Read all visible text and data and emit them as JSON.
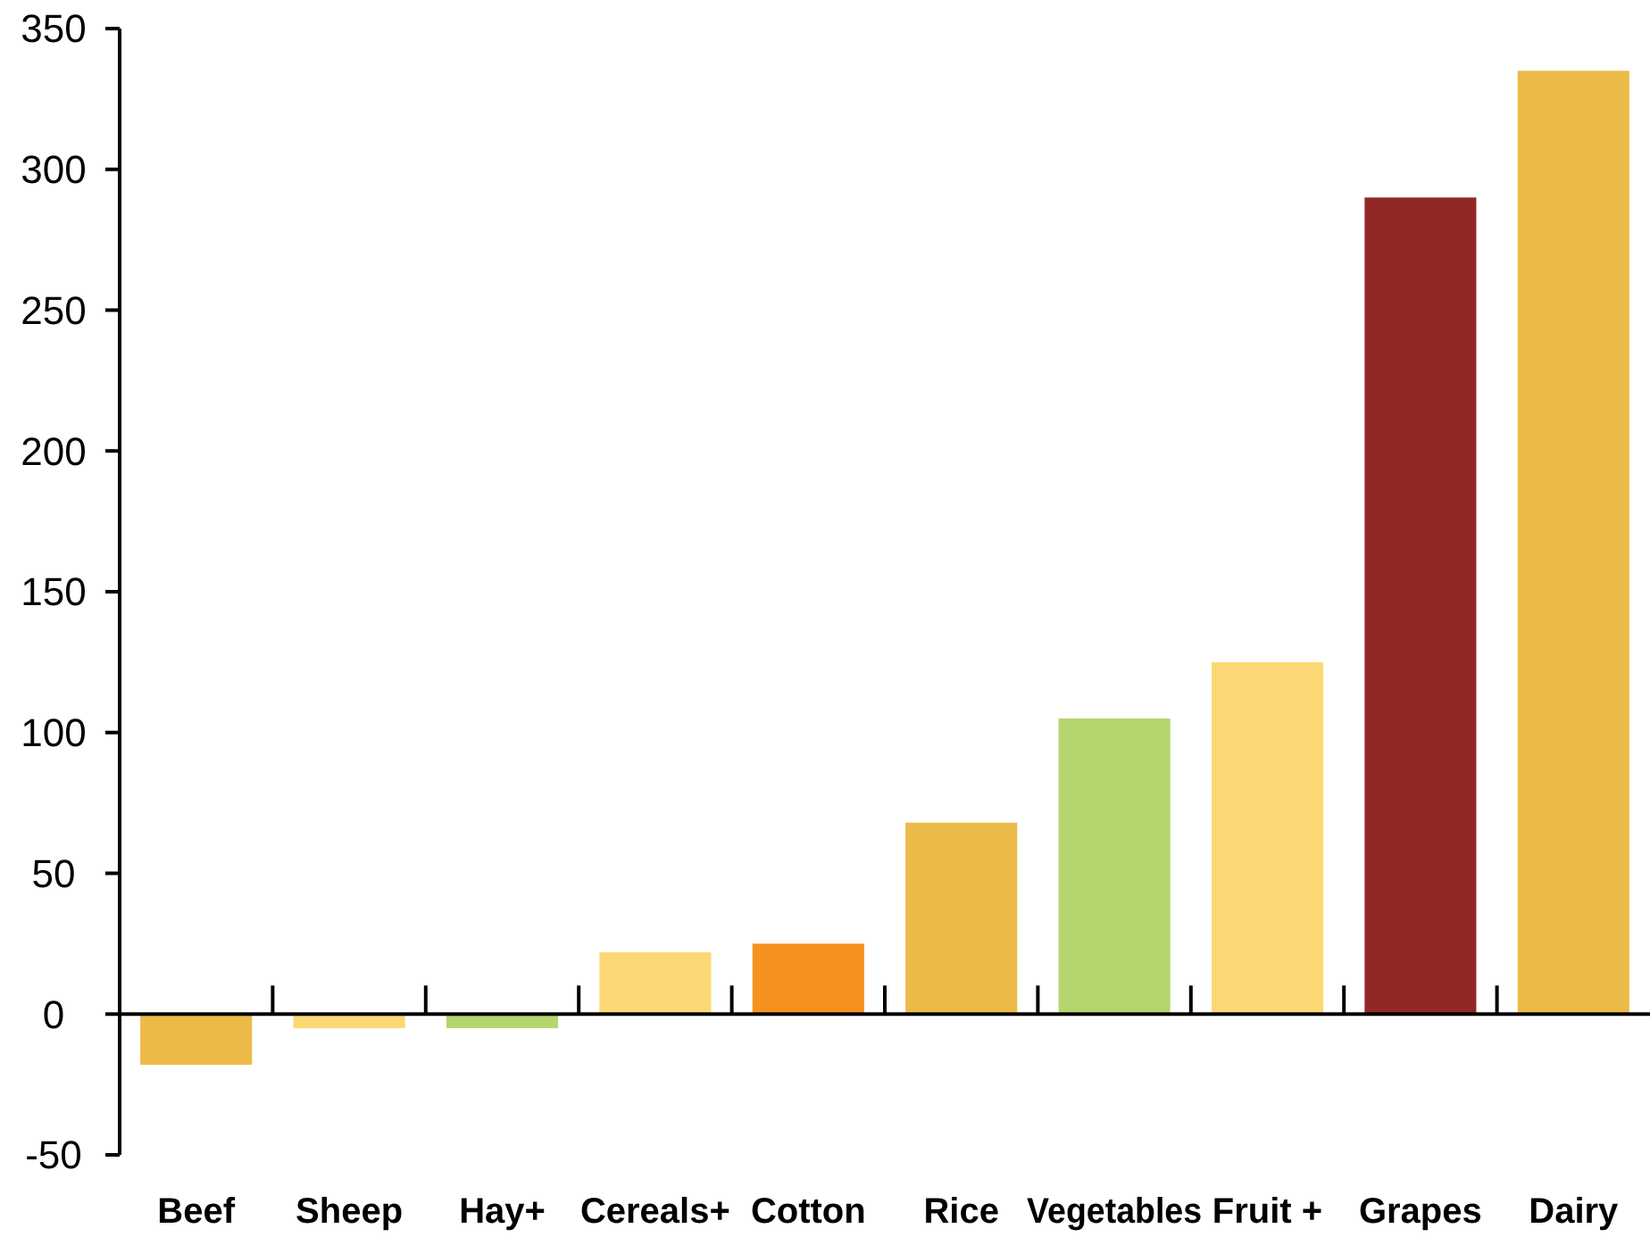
{
  "chart_data": {
    "type": "bar",
    "categories": [
      "Beef",
      "Sheep",
      "Hay+",
      "Cereals+",
      "Cotton",
      "Rice",
      "Vegetables",
      "Fruit +",
      "Grapes",
      "Dairy"
    ],
    "values": [
      -18,
      -5,
      -5,
      22,
      25,
      68,
      105,
      125,
      290,
      335
    ],
    "colors": [
      "#ecba48",
      "#fcd874",
      "#b5d56f",
      "#fcd874",
      "#f5921e",
      "#ecba48",
      "#b5d56f",
      "#fcd874",
      "#922826",
      "#ecba48"
    ],
    "ylim": [
      -50,
      350
    ],
    "yticks": [
      -50,
      0,
      50,
      100,
      150,
      200,
      250,
      300,
      350
    ]
  }
}
